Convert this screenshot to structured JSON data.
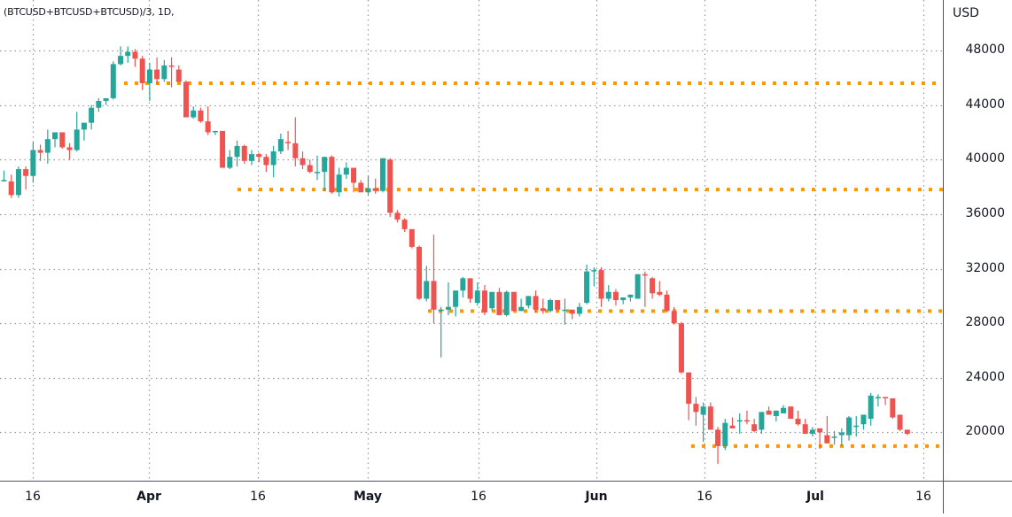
{
  "header": {
    "title": "(BTCUSD+BTCUSD+BTCUSD)/3, 1D,"
  },
  "colors": {
    "up": "#26a69a",
    "down": "#ef5350",
    "support": "#ff9800",
    "grid": "#9598a1",
    "axis": "#50535e",
    "text": "#131722"
  },
  "chart_data": {
    "type": "candlestick",
    "title": "(BTCUSD+BTCUSD+BTCUSD)/3, 1D",
    "xlabel": "",
    "ylabel": "USD",
    "ylim": [
      16500,
      51500
    ],
    "y_ticks": [
      48000,
      44000,
      40000,
      36000,
      32000,
      28000,
      24000,
      20000
    ],
    "x_ticks": [
      {
        "label": "16",
        "x": 37,
        "month": false
      },
      {
        "label": "Apr",
        "x": 168,
        "month": true
      },
      {
        "label": "16",
        "x": 291,
        "month": false
      },
      {
        "label": "May",
        "x": 415,
        "month": true
      },
      {
        "label": "16",
        "x": 540,
        "month": false
      },
      {
        "label": "Jun",
        "x": 673,
        "month": true
      },
      {
        "label": "16",
        "x": 795,
        "month": false
      },
      {
        "label": "Jul",
        "x": 920,
        "month": true
      },
      {
        "label": "16",
        "x": 1042,
        "month": false
      }
    ],
    "grid": true,
    "support_levels": [
      {
        "price": 45600,
        "x_start": 140,
        "x_end": 1064
      },
      {
        "price": 37800,
        "x_start": 268,
        "x_end": 1064
      },
      {
        "price": 28900,
        "x_start": 483,
        "x_end": 1064
      },
      {
        "price": 19000,
        "x_start": 780,
        "x_end": 1064
      }
    ],
    "candles_ohlc": [
      [
        38400,
        39200,
        38400,
        38500
      ],
      [
        38400,
        38900,
        37200,
        37400
      ],
      [
        37400,
        39500,
        37200,
        39300
      ],
      [
        39300,
        39500,
        37800,
        38800
      ],
      [
        38800,
        41300,
        38300,
        40700
      ],
      [
        40700,
        41100,
        39900,
        40500
      ],
      [
        40500,
        42200,
        39700,
        41500
      ],
      [
        41500,
        41800,
        40900,
        42000
      ],
      [
        42000,
        42000,
        40800,
        40900
      ],
      [
        40900,
        41200,
        40000,
        40700
      ],
      [
        40700,
        43500,
        40600,
        42200
      ],
      [
        42200,
        42600,
        41400,
        42700
      ],
      [
        42700,
        44000,
        42200,
        43800
      ],
      [
        43800,
        44500,
        43500,
        44300
      ],
      [
        44300,
        44400,
        44000,
        44500
      ],
      [
        44500,
        47200,
        44400,
        47000
      ],
      [
        47000,
        48300,
        46900,
        47600
      ],
      [
        47600,
        48300,
        47100,
        47900
      ],
      [
        47900,
        48100,
        46800,
        47400
      ],
      [
        47400,
        47600,
        45100,
        45600
      ],
      [
        45600,
        47100,
        44300,
        46600
      ],
      [
        46600,
        47500,
        45500,
        45900
      ],
      [
        45900,
        47300,
        45700,
        46900
      ],
      [
        46900,
        47500,
        45300,
        46800
      ],
      [
        46600,
        46900,
        45900,
        45700
      ],
      [
        45700,
        45800,
        43100,
        43100
      ],
      [
        43100,
        43900,
        43000,
        43600
      ],
      [
        43600,
        43800,
        42700,
        42800
      ],
      [
        42800,
        43900,
        41800,
        42000
      ],
      [
        42000,
        42100,
        41800,
        42100
      ],
      [
        42100,
        41900,
        39400,
        39400
      ],
      [
        39400,
        40700,
        39300,
        40200
      ],
      [
        40200,
        41400,
        39500,
        41000
      ],
      [
        41000,
        41100,
        39700,
        39900
      ],
      [
        39900,
        40700,
        39600,
        40400
      ],
      [
        40400,
        40500,
        39800,
        40200
      ],
      [
        40200,
        40400,
        39100,
        39600
      ],
      [
        39600,
        41000,
        38700,
        40600
      ],
      [
        40600,
        41900,
        40400,
        41500
      ],
      [
        41300,
        42100,
        40700,
        41200
      ],
      [
        41200,
        43100,
        39500,
        40100
      ],
      [
        40100,
        40600,
        39300,
        39600
      ],
      [
        39600,
        40000,
        39000,
        39100
      ],
      [
        39100,
        40300,
        38500,
        39100
      ],
      [
        39100,
        39800,
        37700,
        40200
      ],
      [
        40200,
        40300,
        37500,
        37600
      ],
      [
        37600,
        39400,
        37300,
        38900
      ],
      [
        38900,
        39800,
        38600,
        39400
      ],
      [
        39400,
        39300,
        37600,
        38300
      ],
      [
        38300,
        38500,
        37600,
        37600
      ],
      [
        37600,
        38800,
        37400,
        37900
      ],
      [
        37900,
        38600,
        37500,
        37700
      ],
      [
        37700,
        40100,
        37600,
        40100
      ],
      [
        40000,
        40100,
        35800,
        36100
      ],
      [
        36100,
        36300,
        35400,
        35600
      ],
      [
        35600,
        35700,
        34700,
        34900
      ],
      [
        34900,
        34900,
        33500,
        33600
      ],
      [
        33600,
        33700,
        29700,
        29800
      ],
      [
        29800,
        32200,
        29600,
        31100
      ],
      [
        31100,
        34500,
        28000,
        29000
      ],
      [
        29000,
        29200,
        25500,
        29000
      ],
      [
        29000,
        31000,
        28600,
        29200
      ],
      [
        29200,
        30400,
        28500,
        30400
      ],
      [
        30400,
        31400,
        29900,
        31300
      ],
      [
        31300,
        31300,
        29500,
        29800
      ],
      [
        29500,
        31000,
        29300,
        30400
      ],
      [
        30400,
        30800,
        28600,
        28800
      ],
      [
        29100,
        30300,
        28900,
        30300
      ],
      [
        30300,
        30600,
        28600,
        28600
      ],
      [
        28600,
        30400,
        28500,
        30300
      ],
      [
        30300,
        30200,
        29000,
        28900
      ],
      [
        28900,
        29800,
        28900,
        29200
      ],
      [
        29300,
        30000,
        29100,
        30000
      ],
      [
        30000,
        30400,
        28800,
        29000
      ],
      [
        29100,
        29800,
        28700,
        28900
      ],
      [
        28900,
        29800,
        28800,
        29700
      ],
      [
        29700,
        29500,
        28900,
        29000
      ],
      [
        29000,
        29800,
        27900,
        29000
      ],
      [
        29000,
        29000,
        28300,
        28700
      ],
      [
        28700,
        29500,
        28500,
        29200
      ],
      [
        29500,
        32300,
        29400,
        31800
      ],
      [
        31800,
        32100,
        30700,
        31900
      ],
      [
        31900,
        32100,
        29200,
        29800
      ],
      [
        29800,
        30800,
        29600,
        30300
      ],
      [
        30300,
        30500,
        29300,
        29700
      ],
      [
        29700,
        29800,
        29400,
        29900
      ],
      [
        29900,
        30100,
        29600,
        30100
      ],
      [
        29800,
        31600,
        29800,
        31600
      ],
      [
        31600,
        31800,
        29200,
        31500
      ],
      [
        31300,
        31400,
        29800,
        30200
      ],
      [
        30300,
        31100,
        30000,
        30100
      ],
      [
        30100,
        30400,
        28800,
        28900
      ],
      [
        28900,
        29200,
        27900,
        28000
      ],
      [
        28000,
        28100,
        24300,
        24400
      ],
      [
        24400,
        24000,
        20900,
        22100
      ],
      [
        22100,
        22600,
        20500,
        21500
      ],
      [
        21300,
        22200,
        19300,
        21900
      ],
      [
        21900,
        22200,
        20400,
        20200
      ],
      [
        20200,
        20400,
        17700,
        19000
      ],
      [
        19000,
        21000,
        18700,
        20700
      ],
      [
        20500,
        21100,
        20300,
        20300
      ],
      [
        20800,
        21400,
        19900,
        20900
      ],
      [
        20900,
        21600,
        20600,
        20800
      ],
      [
        20600,
        21000,
        20000,
        20100
      ],
      [
        20200,
        21300,
        19900,
        21500
      ],
      [
        21600,
        21900,
        21300,
        21300
      ],
      [
        21200,
        21600,
        20800,
        21600
      ],
      [
        21400,
        22000,
        21500,
        21800
      ],
      [
        21900,
        21600,
        21000,
        21000
      ],
      [
        21000,
        21600,
        20500,
        20600
      ],
      [
        20600,
        21000,
        19900,
        19900
      ],
      [
        19900,
        20400,
        19700,
        20200
      ],
      [
        20300,
        20000,
        18800,
        20000
      ],
      [
        19800,
        21200,
        19200,
        19200
      ],
      [
        19700,
        20100,
        19100,
        19700
      ],
      [
        19800,
        20300,
        19000,
        20000
      ],
      [
        19800,
        21200,
        19400,
        21100
      ],
      [
        20500,
        21200,
        19700,
        20500
      ],
      [
        20600,
        21200,
        20200,
        21300
      ],
      [
        21000,
        22900,
        20500,
        22700
      ],
      [
        22600,
        22800,
        21900,
        22600
      ],
      [
        22600,
        22600,
        22000,
        22500
      ],
      [
        22500,
        21900,
        21000,
        21100
      ],
      [
        21300,
        21300,
        20100,
        20200
      ],
      [
        20200,
        20100,
        19800,
        19900
      ]
    ]
  }
}
